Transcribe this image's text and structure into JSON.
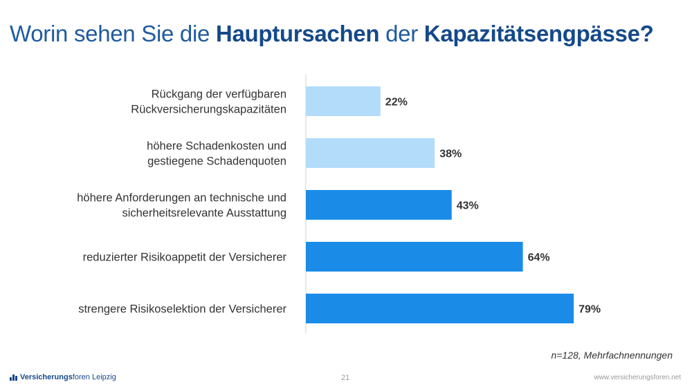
{
  "title": {
    "part1": "Worin sehen Sie die ",
    "bold1": "Hauptursachen",
    "part2": " der ",
    "bold2": "Kapazitätsengpässe?"
  },
  "chart_data": {
    "type": "bar",
    "orientation": "horizontal",
    "categories": [
      [
        "Rückgang der verfügbaren",
        "Rückversicherungskapazitäten"
      ],
      [
        "höhere Schadenkosten und",
        "gestiegene Schadenquoten"
      ],
      [
        "höhere Anforderungen an technische und",
        "sicherheitsrelevante Ausstattung"
      ],
      [
        "reduzierter Risikoappetit der Versicherer"
      ],
      [
        "strengere Risikoselektion der Versicherer"
      ]
    ],
    "values": [
      22,
      38,
      43,
      64,
      79
    ],
    "value_labels": [
      "22%",
      "38%",
      "43%",
      "64%",
      "79%"
    ],
    "bar_colors": [
      "#b3dcfa",
      "#b3dcfa",
      "#1a8ce8",
      "#1a8ce8",
      "#1a8ce8"
    ],
    "unit": "%",
    "xlim": [
      0,
      100
    ],
    "grid": false
  },
  "note": "n=128, Mehrfachnennungen",
  "footer": {
    "brand_bold": "Versicherungs",
    "brand_rest": "foren Leipzig",
    "page": "21",
    "url": "www.versicherungsforen.net"
  },
  "colors": {
    "title": "#1f5aa0",
    "title_bold": "#15498a",
    "light_bar": "#b3dcfa",
    "dark_bar": "#1a8ce8"
  },
  "icons": [
    "logo-mark-icon"
  ]
}
